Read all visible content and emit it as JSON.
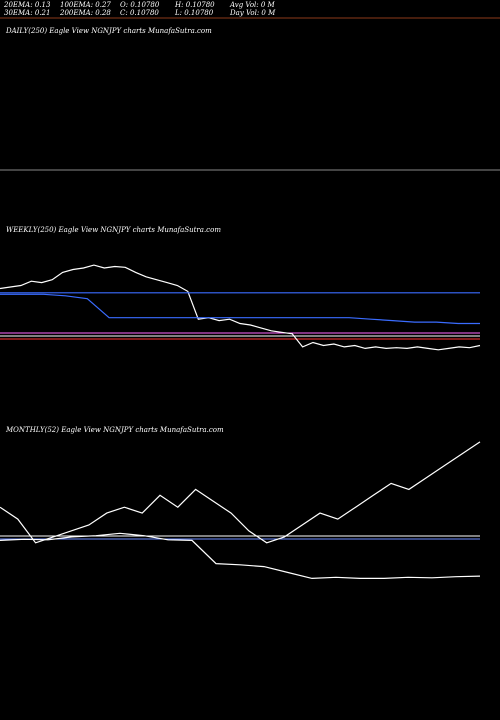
{
  "header": {
    "row1": [
      "20EMA: 0.13",
      "100EMA: 0.27",
      "O: 0.10780",
      "H: 0.10780",
      "Avg Vol: 0  M"
    ],
    "row2": [
      "30EMA: 0.21",
      "200EMA: 0.28",
      "C: 0.10780",
      "L: 0.10780",
      "Day Vol: 0  M"
    ],
    "accent": "#8b3a1a"
  },
  "panels": {
    "daily": {
      "label": "DAILY(250) Eagle  View  NGNJPY charts MunafaSutra.com"
    },
    "weekly": {
      "label": "WEEKLY(250) Eagle  View  NGNJPY charts MunafaSutra.com"
    },
    "monthly": {
      "label": "MONTHLY(52) Eagle  View  NGNJPY charts MunafaSutra.com"
    }
  },
  "chart_data": [
    {
      "type": "line",
      "panel": "weekly",
      "series": [
        {
          "color": "#ffffff",
          "values": [
            0.34,
            0.342,
            0.344,
            0.35,
            0.348,
            0.352,
            0.362,
            0.366,
            0.368,
            0.372,
            0.368,
            0.37,
            0.369,
            0.362,
            0.356,
            0.352,
            0.348,
            0.344,
            0.336,
            0.298,
            0.3,
            0.296,
            0.298,
            0.292,
            0.29,
            0.286,
            0.282,
            0.28,
            0.278,
            0.26,
            0.266,
            0.262,
            0.264,
            0.26,
            0.262,
            0.258,
            0.26,
            0.258,
            0.259,
            0.258,
            0.26,
            0.258,
            0.256,
            0.258,
            0.26,
            0.259,
            0.262
          ]
        },
        {
          "color": "#3a6cff",
          "values": [
            0.334,
            0.334,
            0.334,
            0.334,
            0.334,
            0.334,
            0.334,
            0.334,
            0.334,
            0.334,
            0.334,
            0.334,
            0.334,
            0.334,
            0.334,
            0.334,
            0.334,
            0.334,
            0.334,
            0.334,
            0.334,
            0.334,
            0.334,
            0.334,
            0.334,
            0.334,
            0.334,
            0.334,
            0.334,
            0.334,
            0.334,
            0.334
          ]
        },
        {
          "color": "#3a6cff",
          "values": [
            0.332,
            0.332,
            0.332,
            0.33,
            0.326,
            0.3,
            0.3,
            0.3,
            0.3,
            0.3,
            0.3,
            0.3,
            0.3,
            0.3,
            0.3,
            0.3,
            0.3,
            0.298,
            0.296,
            0.294,
            0.294,
            0.292,
            0.292
          ]
        }
      ]
    },
    {
      "type": "line",
      "panel": "monthly",
      "series": [
        {
          "color": "#ffffff",
          "values": [
            0.31,
            0.29,
            0.25,
            0.26,
            0.27,
            0.28,
            0.3,
            0.31,
            0.3,
            0.33,
            0.31,
            0.34,
            0.32,
            0.3,
            0.27,
            0.25,
            0.26,
            0.28,
            0.3,
            0.29,
            0.31,
            0.33,
            0.35,
            0.34,
            0.36,
            0.38,
            0.4,
            0.42
          ]
        },
        {
          "color": "#ffffff",
          "values": [
            0.254,
            0.256,
            0.255,
            0.26,
            0.262,
            0.266,
            0.262,
            0.255,
            0.254,
            0.215,
            0.213,
            0.21,
            0.2,
            0.19,
            0.192,
            0.19,
            0.19,
            0.192,
            0.191,
            0.193,
            0.194
          ]
        }
      ]
    }
  ]
}
